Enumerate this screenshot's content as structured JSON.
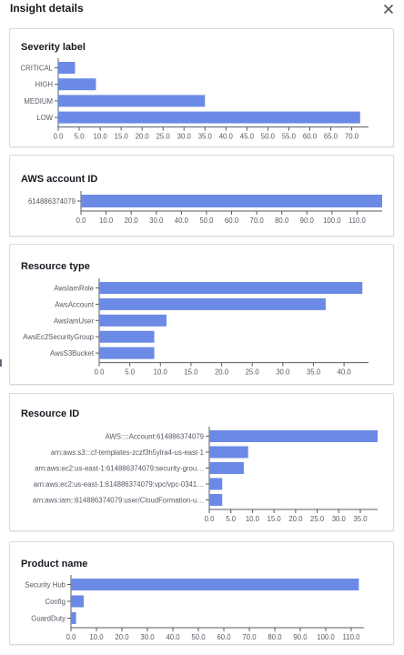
{
  "header": {
    "title": "Insight details",
    "close_icon": "close-icon"
  },
  "colors": {
    "bar": "#6b8ae6",
    "axis": "#545b64",
    "tick_text": "#545b64"
  },
  "charts": [
    {
      "title": "Severity label",
      "chart_data": {
        "type": "bar",
        "orientation": "horizontal",
        "categories": [
          "CRITICAL",
          "HIGH",
          "MEDIUM",
          "LOW"
        ],
        "values": [
          4,
          9,
          35,
          72
        ],
        "xlim": [
          0,
          74
        ],
        "xticks": [
          "0.0",
          "5.0",
          "10.0",
          "15.0",
          "20.0",
          "25.0",
          "30.0",
          "35.0",
          "40.0",
          "45.0",
          "50.0",
          "55.0",
          "60.0",
          "65.0",
          "70.0"
        ]
      }
    },
    {
      "title": "AWS account ID",
      "chart_data": {
        "type": "bar",
        "orientation": "horizontal",
        "categories": [
          "614886374079"
        ],
        "values": [
          120
        ],
        "xlim": [
          0,
          120
        ],
        "xticks": [
          "0.0",
          "10.0",
          "20.0",
          "30.0",
          "40.0",
          "50.0",
          "60.0",
          "70.0",
          "80.0",
          "90.0",
          "100.0",
          "110.0"
        ]
      }
    },
    {
      "title": "Resource type",
      "chart_data": {
        "type": "bar",
        "orientation": "horizontal",
        "categories": [
          "AwsIamRole",
          "AwsAccount",
          "AwsIamUser",
          "AwsEc2SecurityGroup",
          "AwsS3Bucket"
        ],
        "values": [
          43,
          37,
          11,
          9,
          9
        ],
        "xlim": [
          0,
          44
        ],
        "xticks": [
          "0.0",
          "5.0",
          "10.0",
          "15.0",
          "20.0",
          "25.0",
          "30.0",
          "35.0",
          "40.0"
        ]
      }
    },
    {
      "title": "Resource ID",
      "chart_data": {
        "type": "bar",
        "orientation": "horizontal",
        "categories": [
          "AWS::::Account:614886374079",
          "arn:aws:s3:::cf-templates-zczf3h5ylra4-us-east-1",
          "arn:aws:ec2:us-east-1:614886374079:security-grou…",
          "arn:aws:ec2:us-east-1:614886374079:vpc/vpc-0341…",
          "arn:aws:iam::614886374079:user/CloudFormation-u…"
        ],
        "values": [
          39,
          9,
          8,
          3,
          3
        ],
        "xlim": [
          0,
          39
        ],
        "xticks": [
          "0.0",
          "5.0",
          "10.0",
          "15.0",
          "20.0",
          "25.0",
          "30.0",
          "35.0"
        ]
      }
    },
    {
      "title": "Product name",
      "chart_data": {
        "type": "bar",
        "orientation": "horizontal",
        "categories": [
          "Security Hub",
          "Config",
          "GuardDuty"
        ],
        "values": [
          113,
          5,
          2
        ],
        "xlim": [
          0,
          115
        ],
        "xticks": [
          "0.0",
          "10.0",
          "20.0",
          "30.0",
          "40.0",
          "50.0",
          "60.0",
          "70.0",
          "80.0",
          "90.0",
          "100.0",
          "110.0"
        ]
      }
    }
  ]
}
